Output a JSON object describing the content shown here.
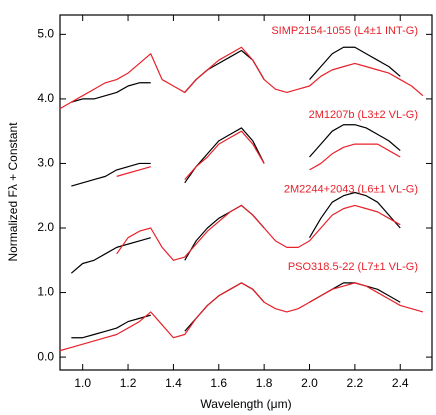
{
  "chart_data": {
    "type": "line",
    "xlabel": "Wavelength (μm)",
    "ylabel": "Normalized Fλ + Constant",
    "xlim": [
      0.9,
      2.54
    ],
    "ylim": [
      -0.2,
      5.3
    ],
    "xticks": [
      {
        "value": 1.0,
        "label": "1.0"
      },
      {
        "value": 1.2,
        "label": "1.2"
      },
      {
        "value": 1.4,
        "label": "1.4"
      },
      {
        "value": 1.6,
        "label": "1.6"
      },
      {
        "value": 1.8,
        "label": "1.8"
      },
      {
        "value": 2.0,
        "label": "2.0"
      },
      {
        "value": 2.2,
        "label": "2.2"
      },
      {
        "value": 2.4,
        "label": "2.4"
      }
    ],
    "yticks": [
      {
        "value": 0,
        "label": "0.0"
      },
      {
        "value": 1,
        "label": "1.0"
      },
      {
        "value": 2,
        "label": "2.0"
      },
      {
        "value": 3,
        "label": "3.0"
      },
      {
        "value": 4,
        "label": "4.0"
      },
      {
        "value": 5,
        "label": "5.0"
      }
    ],
    "x": [
      0.9,
      0.95,
      1.0,
      1.05,
      1.1,
      1.15,
      1.2,
      1.25,
      1.3,
      1.35,
      1.4,
      1.45,
      1.5,
      1.55,
      1.6,
      1.65,
      1.7,
      1.75,
      1.8,
      1.85,
      1.9,
      1.95,
      2.0,
      2.05,
      2.1,
      2.15,
      2.2,
      2.25,
      2.3,
      2.35,
      2.4,
      2.45,
      2.5
    ],
    "series": [
      {
        "color": "#000000",
        "values": [
          null,
          0.3,
          0.3,
          0.35,
          0.4,
          0.45,
          0.55,
          0.6,
          0.65,
          null,
          null,
          0.4,
          0.6,
          0.8,
          0.95,
          1.05,
          1.15,
          1.05,
          0.85,
          null,
          null,
          null,
          0.85,
          0.95,
          1.05,
          1.15,
          1.15,
          1.1,
          1.05,
          0.95,
          0.85,
          null,
          null
        ]
      },
      {
        "name": "PSO318.5-22 (L7±1 VL-G)",
        "color": "#e8212a",
        "values": [
          0.1,
          0.15,
          0.2,
          0.25,
          0.3,
          0.35,
          0.45,
          0.55,
          0.7,
          0.5,
          0.3,
          0.35,
          0.6,
          0.8,
          0.95,
          1.05,
          1.15,
          1.05,
          0.85,
          0.75,
          0.7,
          0.75,
          0.85,
          0.95,
          1.05,
          1.1,
          1.15,
          1.1,
          1.0,
          0.9,
          0.8,
          0.75,
          0.7
        ]
      },
      {
        "color": "#000000",
        "values": [
          null,
          1.3,
          1.45,
          1.5,
          1.6,
          1.7,
          1.75,
          1.8,
          1.85,
          null,
          null,
          1.5,
          1.8,
          2.0,
          2.15,
          2.25,
          2.35,
          2.2,
          2.0,
          null,
          null,
          null,
          1.85,
          2.15,
          2.4,
          2.5,
          2.55,
          2.5,
          2.4,
          2.2,
          2.0,
          null,
          null
        ]
      },
      {
        "name": "2M2244+2043 (L6±1 VL-G)",
        "color": "#e8212a",
        "values": [
          null,
          null,
          null,
          null,
          null,
          1.6,
          1.85,
          1.95,
          2.0,
          1.7,
          1.5,
          1.55,
          1.75,
          1.95,
          2.1,
          2.25,
          2.35,
          2.2,
          2.0,
          1.8,
          1.7,
          1.7,
          1.8,
          2.0,
          2.2,
          2.3,
          2.35,
          2.3,
          2.25,
          2.15,
          2.05,
          null,
          null
        ]
      },
      {
        "color": "#000000",
        "values": [
          null,
          2.65,
          2.7,
          2.75,
          2.8,
          2.9,
          2.95,
          3.0,
          3.0,
          null,
          null,
          2.7,
          2.95,
          3.15,
          3.35,
          3.45,
          3.55,
          3.35,
          3.0,
          null,
          null,
          null,
          3.1,
          3.3,
          3.5,
          3.6,
          3.6,
          3.55,
          3.45,
          3.35,
          3.2,
          null,
          null
        ]
      },
      {
        "name": "2M1207b (L3±2 VL-G)",
        "color": "#e8212a",
        "values": [
          null,
          null,
          null,
          null,
          null,
          2.8,
          2.85,
          2.9,
          2.95,
          null,
          null,
          2.75,
          2.95,
          3.1,
          3.3,
          3.4,
          3.5,
          3.3,
          3.0,
          null,
          null,
          null,
          2.9,
          3.0,
          3.15,
          3.25,
          3.3,
          3.3,
          3.3,
          3.2,
          3.1,
          null,
          null
        ]
      },
      {
        "color": "#000000",
        "values": [
          null,
          3.95,
          4.0,
          4.0,
          4.05,
          4.1,
          4.2,
          4.25,
          4.25,
          null,
          null,
          4.1,
          4.3,
          4.45,
          4.55,
          4.65,
          4.75,
          4.6,
          4.3,
          null,
          null,
          null,
          4.3,
          4.5,
          4.7,
          4.8,
          4.8,
          4.7,
          4.6,
          4.5,
          4.35,
          null,
          null
        ]
      },
      {
        "name": "SIMP2154-1055 (L4±1 INT-G)",
        "color": "#e8212a",
        "values": [
          3.85,
          3.95,
          4.05,
          4.15,
          4.25,
          4.3,
          4.4,
          4.55,
          4.7,
          4.3,
          4.2,
          4.1,
          4.3,
          4.45,
          4.6,
          4.7,
          4.8,
          4.6,
          4.3,
          4.15,
          4.1,
          4.15,
          4.2,
          4.35,
          4.45,
          4.5,
          4.55,
          4.5,
          4.45,
          4.4,
          4.3,
          4.2,
          4.05
        ]
      }
    ]
  }
}
